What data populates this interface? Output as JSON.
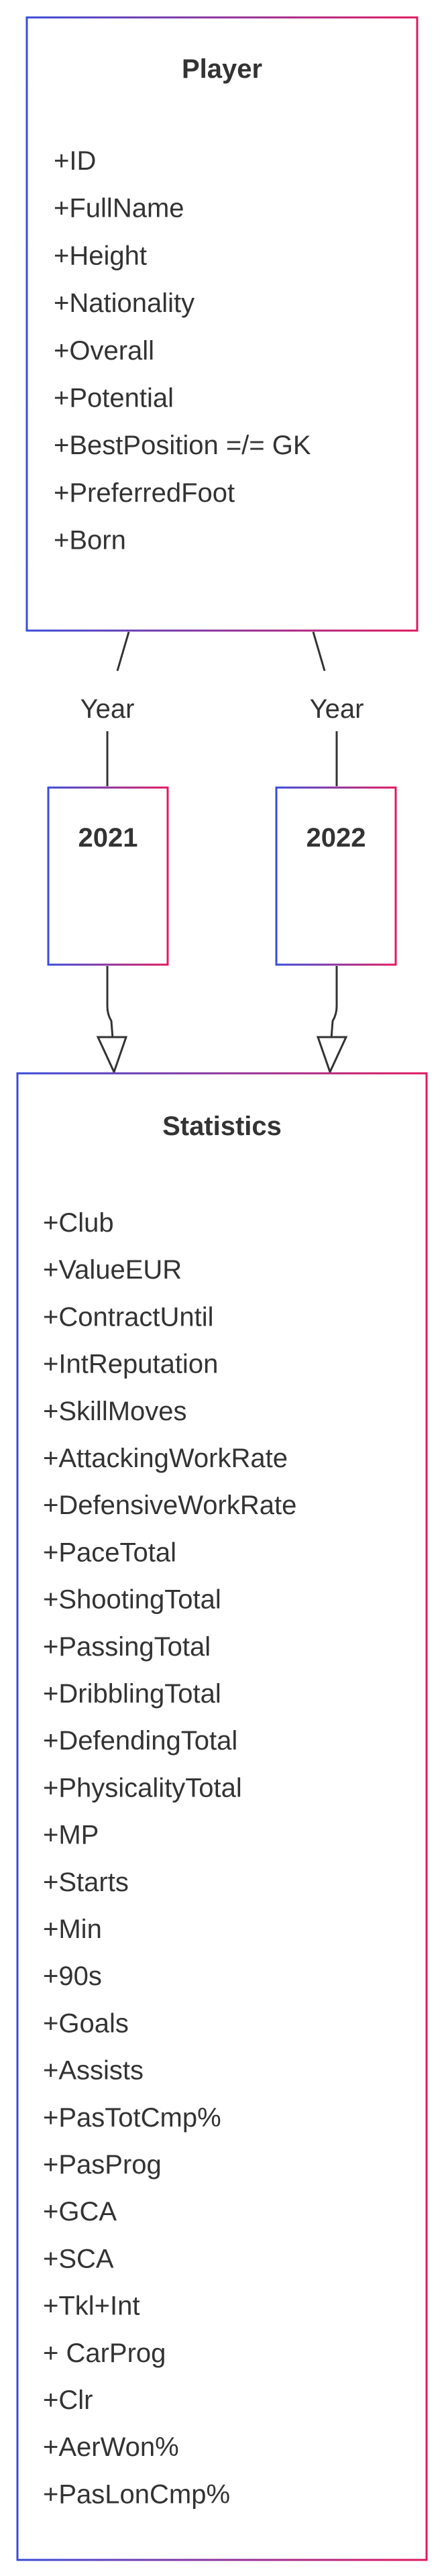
{
  "diagram": {
    "accent_colors": {
      "blue": "#3a4bd9",
      "pink": "#e0195e"
    },
    "player": {
      "title": "Player",
      "attributes": [
        "+ID",
        "+FullName",
        "+Height",
        "+Nationality",
        "+Overall",
        "+Potential",
        "+BestPosition =/= GK",
        "+PreferredFoot",
        "+Born"
      ]
    },
    "edge_labels": {
      "left": "Year",
      "right": "Year"
    },
    "year_2021": {
      "title": "2021"
    },
    "year_2022": {
      "title": "2022"
    },
    "statistics": {
      "title": "Statistics",
      "attributes": [
        "+Club",
        "+ValueEUR",
        "+ContractUntil",
        "+IntReputation",
        "+SkillMoves",
        "+AttackingWorkRate",
        "+DefensiveWorkRate",
        "+PaceTotal",
        "+ShootingTotal",
        "+PassingTotal",
        "+DribblingTotal",
        "+DefendingTotal",
        "+PhysicalityTotal",
        "+MP",
        "+Starts",
        "+Min",
        "+90s",
        "+Goals",
        "+Assists",
        "+PasTotCmp%",
        "+PasProg",
        "+GCA",
        "+SCA",
        "+Tkl+Int",
        "+ CarProg",
        "+Clr",
        "+AerWon%",
        "+PasLonCmp%"
      ]
    }
  }
}
